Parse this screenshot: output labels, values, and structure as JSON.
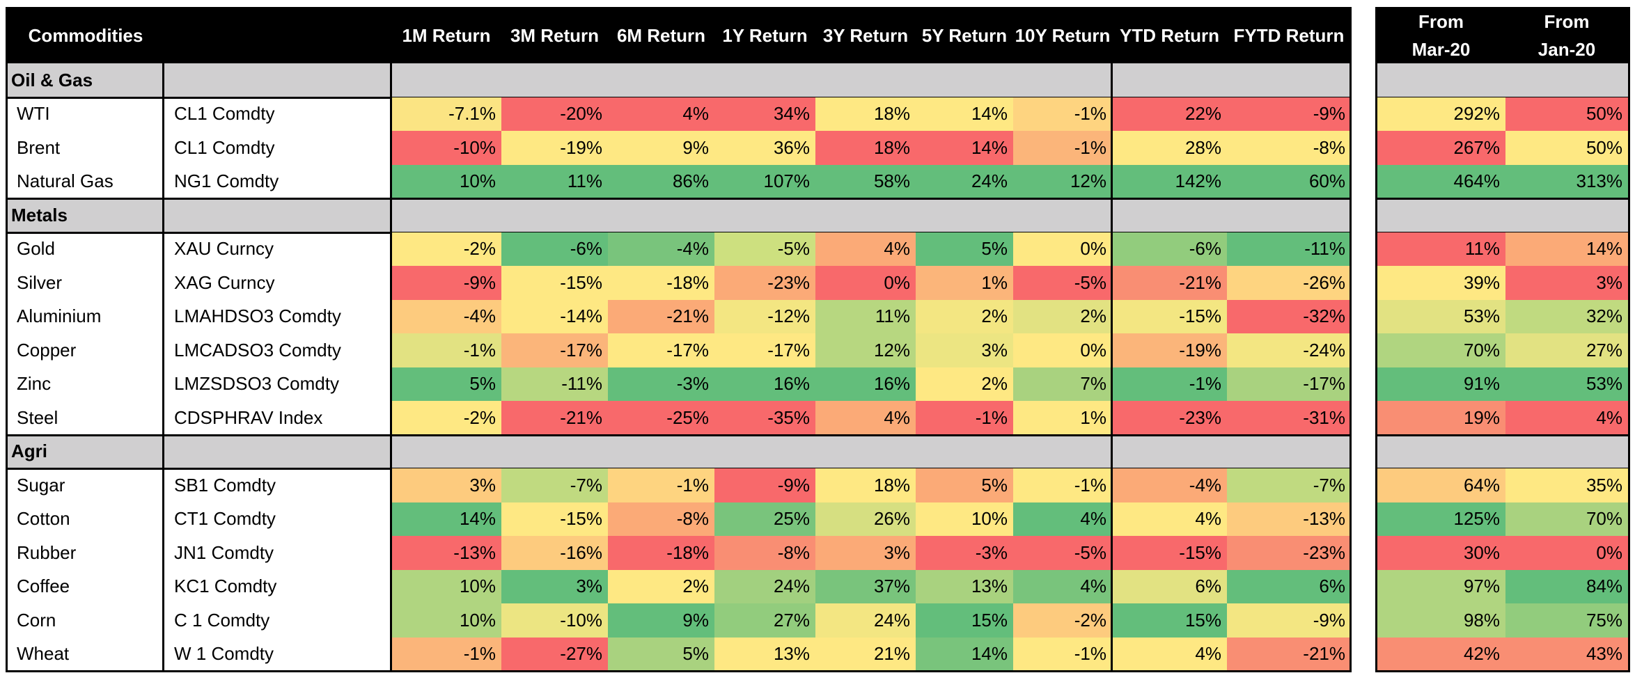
{
  "header": {
    "commodities": "Commodities",
    "main_cols": [
      "1M Return",
      "3M Return",
      "6M Return",
      "1Y Return",
      "3Y Return",
      "5Y Return",
      "10Y Return",
      "YTD Return",
      "FYTD Return"
    ],
    "side_cols": [
      "From Mar-20",
      "From Jan-20"
    ]
  },
  "sections": [
    {
      "name": "Oil & Gas",
      "rows": [
        {
          "name": "WTI",
          "ticker": "CL1 Comdty",
          "main": [
            "-7.1%",
            "-20%",
            "4%",
            "34%",
            "18%",
            "14%",
            "-1%",
            "22%",
            "-9%"
          ],
          "main_colors": [
            "#fbe483",
            "#f8696b",
            "#f8696b",
            "#f8696b",
            "#fee883",
            "#fee883",
            "#fed480",
            "#f8696b",
            "#f8696b"
          ],
          "side": [
            "292%",
            "50%"
          ],
          "side_colors": [
            "#fee883",
            "#f8696b"
          ]
        },
        {
          "name": "Brent",
          "ticker": "CL1 Comdty",
          "main": [
            "-10%",
            "-19%",
            "9%",
            "36%",
            "18%",
            "14%",
            "-1%",
            "28%",
            "-8%"
          ],
          "main_colors": [
            "#f8696b",
            "#fee883",
            "#fee883",
            "#fee883",
            "#f8696b",
            "#f8696b",
            "#fbb57a",
            "#fee883",
            "#fee883"
          ],
          "side": [
            "267%",
            "50%"
          ],
          "side_colors": [
            "#f8696b",
            "#fee883"
          ]
        },
        {
          "name": "Natural Gas",
          "ticker": "NG1 Comdty",
          "main": [
            "10%",
            "11%",
            "86%",
            "107%",
            "58%",
            "24%",
            "12%",
            "142%",
            "60%"
          ],
          "main_colors": [
            "#63be7b",
            "#63be7b",
            "#63be7b",
            "#63be7b",
            "#63be7b",
            "#63be7b",
            "#63be7b",
            "#63be7b",
            "#63be7b"
          ],
          "side": [
            "464%",
            "313%"
          ],
          "side_colors": [
            "#63be7b",
            "#63be7b"
          ]
        }
      ]
    },
    {
      "name": "Metals",
      "rows": [
        {
          "name": "Gold",
          "ticker": "XAU Curncy",
          "main": [
            "-2%",
            "-6%",
            "-4%",
            "-5%",
            "4%",
            "5%",
            "0%",
            "-6%",
            "-11%"
          ],
          "main_colors": [
            "#fee883",
            "#63be7b",
            "#79c47c",
            "#cde07f",
            "#fbaa77",
            "#63be7b",
            "#fee883",
            "#92cc7d",
            "#63be7b"
          ],
          "side": [
            "11%",
            "14%"
          ],
          "side_colors": [
            "#f8696b",
            "#fbaa77"
          ]
        },
        {
          "name": "Silver",
          "ticker": "XAG Curncy",
          "main": [
            "-9%",
            "-15%",
            "-18%",
            "-23%",
            "0%",
            "1%",
            "-5%",
            "-21%",
            "-26%"
          ],
          "main_colors": [
            "#f8696b",
            "#fee883",
            "#fee883",
            "#fbaa77",
            "#f8696b",
            "#fbb57a",
            "#f8696b",
            "#f98e73",
            "#fed480"
          ],
          "side": [
            "39%",
            "3%"
          ],
          "side_colors": [
            "#fee883",
            "#f8696b"
          ]
        },
        {
          "name": "Aluminium",
          "ticker": "LMAHDSO3 Comdty",
          "main": [
            "-4%",
            "-14%",
            "-21%",
            "-12%",
            "11%",
            "2%",
            "2%",
            "-15%",
            "-32%"
          ],
          "main_colors": [
            "#fdcb7e",
            "#fee883",
            "#fbaa77",
            "#f3e682",
            "#b7d780",
            "#f3e682",
            "#e2e282",
            "#f3e682",
            "#f8696b"
          ],
          "side": [
            "53%",
            "32%"
          ],
          "side_colors": [
            "#e2e282",
            "#c0da80"
          ]
        },
        {
          "name": "Copper",
          "ticker": "LMCADSO3 Comdty",
          "main": [
            "-1%",
            "-17%",
            "-17%",
            "-17%",
            "12%",
            "3%",
            "0%",
            "-19%",
            "-24%"
          ],
          "main_colors": [
            "#e2e282",
            "#fbb57a",
            "#fee883",
            "#fee883",
            "#b7d780",
            "#ece582",
            "#fee883",
            "#fbb57a",
            "#f3e682"
          ],
          "side": [
            "70%",
            "27%"
          ],
          "side_colors": [
            "#b0d580",
            "#e2e282"
          ]
        },
        {
          "name": "Zinc",
          "ticker": "LMZSDSO3 Comdty",
          "main": [
            "5%",
            "-11%",
            "-3%",
            "16%",
            "16%",
            "2%",
            "7%",
            "-1%",
            "-17%"
          ],
          "main_colors": [
            "#63be7b",
            "#b7d780",
            "#63be7b",
            "#63be7b",
            "#63be7b",
            "#fee883",
            "#a9d27f",
            "#63be7b",
            "#a9d27f"
          ],
          "side": [
            "91%",
            "53%"
          ],
          "side_colors": [
            "#63be7b",
            "#63be7b"
          ]
        },
        {
          "name": "Steel",
          "ticker": "CDSPHRAV Index",
          "main": [
            "-2%",
            "-21%",
            "-25%",
            "-35%",
            "4%",
            "-1%",
            "1%",
            "-23%",
            "-31%"
          ],
          "main_colors": [
            "#fee883",
            "#f8696b",
            "#f8696b",
            "#f8696b",
            "#fbaa77",
            "#f8696b",
            "#fee883",
            "#f8696b",
            "#f8696b"
          ],
          "side": [
            "19%",
            "4%"
          ],
          "side_colors": [
            "#f98e73",
            "#f8696b"
          ]
        }
      ]
    },
    {
      "name": "Agri",
      "rows": [
        {
          "name": "Sugar",
          "ticker": "SB1 Comdty",
          "main": [
            "3%",
            "-7%",
            "-1%",
            "-9%",
            "18%",
            "5%",
            "-1%",
            "-4%",
            "-7%"
          ],
          "main_colors": [
            "#fdcb7e",
            "#c0da80",
            "#fed480",
            "#f8696b",
            "#fee883",
            "#fbaa77",
            "#fee883",
            "#fbaa77",
            "#c0da80"
          ],
          "side": [
            "64%",
            "35%"
          ],
          "side_colors": [
            "#fdcb7e",
            "#fee883"
          ]
        },
        {
          "name": "Cotton",
          "ticker": "CT1 Comdty",
          "main": [
            "14%",
            "-15%",
            "-8%",
            "25%",
            "26%",
            "10%",
            "4%",
            "4%",
            "-13%"
          ],
          "main_colors": [
            "#63be7b",
            "#fee883",
            "#fbaa77",
            "#79c47c",
            "#d6df81",
            "#fee883",
            "#63be7b",
            "#fee883",
            "#fdcb7e"
          ],
          "side": [
            "125%",
            "70%"
          ],
          "side_colors": [
            "#63be7b",
            "#a9d27f"
          ]
        },
        {
          "name": "Rubber",
          "ticker": "JN1 Comdty",
          "main": [
            "-13%",
            "-16%",
            "-18%",
            "-8%",
            "3%",
            "-3%",
            "-5%",
            "-15%",
            "-23%"
          ],
          "main_colors": [
            "#f8696b",
            "#fdcb7e",
            "#f8696b",
            "#f98e73",
            "#fbaa77",
            "#f8696b",
            "#f8696b",
            "#f8696b",
            "#f98e73"
          ],
          "side": [
            "30%",
            "0%"
          ],
          "side_colors": [
            "#f8696b",
            "#f8696b"
          ]
        },
        {
          "name": "Coffee",
          "ticker": "KC1 Comdty",
          "main": [
            "10%",
            "3%",
            "2%",
            "24%",
            "37%",
            "13%",
            "4%",
            "6%",
            "6%"
          ],
          "main_colors": [
            "#b0d580",
            "#63be7b",
            "#fee883",
            "#a2d07f",
            "#79c47c",
            "#a9d27f",
            "#79c47c",
            "#e2e282",
            "#63be7b"
          ],
          "side": [
            "97%",
            "84%"
          ],
          "side_colors": [
            "#b0d580",
            "#63be7b"
          ]
        },
        {
          "name": "Corn",
          "ticker": "C 1 Comdty",
          "main": [
            "10%",
            "-10%",
            "9%",
            "27%",
            "24%",
            "15%",
            "-2%",
            "15%",
            "-9%"
          ],
          "main_colors": [
            "#b0d580",
            "#ece582",
            "#63be7b",
            "#92cc7d",
            "#f3e682",
            "#63be7b",
            "#fdcb7e",
            "#63be7b",
            "#f3e682"
          ],
          "side": [
            "98%",
            "75%"
          ],
          "side_colors": [
            "#b0d580",
            "#92cc7d"
          ]
        },
        {
          "name": "Wheat",
          "ticker": "W 1 Comdty",
          "main": [
            "-1%",
            "-27%",
            "5%",
            "13%",
            "21%",
            "14%",
            "-1%",
            "4%",
            "-21%"
          ],
          "main_colors": [
            "#fbb57a",
            "#f8696b",
            "#a9d27f",
            "#fee883",
            "#fee883",
            "#79c47c",
            "#fee883",
            "#fee883",
            "#f98e73"
          ],
          "side": [
            "42%",
            "43%"
          ],
          "side_colors": [
            "#f98e73",
            "#f98e73"
          ]
        }
      ]
    }
  ]
}
